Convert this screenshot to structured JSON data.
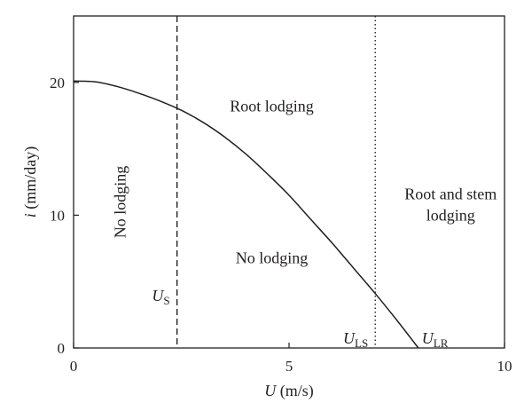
{
  "chart_data": {
    "type": "line",
    "title": "",
    "xlabel": {
      "var": "U",
      "unit": " (m/s)"
    },
    "ylabel": {
      "var": "i",
      "unit": " (mm/day)"
    },
    "xlim": [
      0,
      10
    ],
    "ylim": [
      0,
      25
    ],
    "xticks": [
      0,
      5,
      10
    ],
    "yticks": [
      0,
      10,
      20
    ],
    "grid": false,
    "legend": "none",
    "series": [
      {
        "x": [
          0,
          0.5,
          1,
          1.5,
          2,
          2.5,
          3,
          3.5,
          4,
          4.5,
          5,
          5.5,
          6,
          6.5,
          7,
          7.5,
          8
        ],
        "y": [
          20.1,
          20.05,
          19.7,
          19.2,
          18.6,
          17.9,
          17.0,
          15.9,
          14.6,
          13.1,
          11.5,
          9.7,
          7.9,
          6.0,
          4.1,
          2.1,
          0
        ]
      }
    ],
    "vertical_lines": [
      {
        "x": 2.4,
        "style": "dashed",
        "label_main": "U",
        "label_sub": "S"
      },
      {
        "x": 7.0,
        "style": "dotted",
        "label_main": "U",
        "label_sub": "LS"
      }
    ],
    "point_labels": [
      {
        "x": 8.0,
        "y": 0,
        "label_main": "U",
        "label_sub": "LR"
      }
    ],
    "regions": [
      {
        "lines": [
          "Root lodging"
        ],
        "x": 4.6,
        "y": 17.8,
        "rotate": false
      },
      {
        "lines": [
          "No lodging"
        ],
        "x": 1.2,
        "y": 11.0,
        "rotate": true
      },
      {
        "lines": [
          "No lodging"
        ],
        "x": 4.6,
        "y": 6.4,
        "rotate": false
      },
      {
        "lines": [
          "Root and stem",
          "lodging"
        ],
        "x": 8.75,
        "y": 11.2,
        "rotate": false
      }
    ],
    "colors": {
      "ink": "#231f20",
      "background": "#ffffff"
    }
  }
}
